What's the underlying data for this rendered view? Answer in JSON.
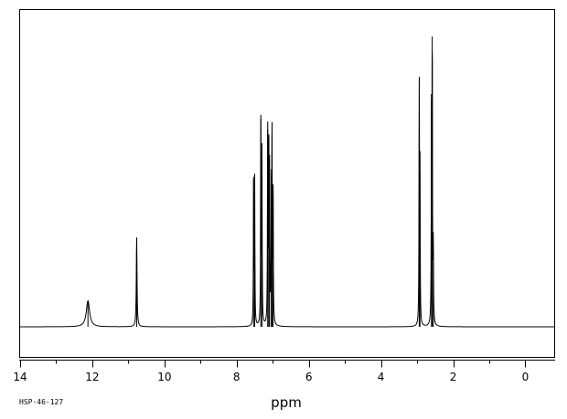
{
  "spectrum_id": "HSP-46-127",
  "chart_data": {
    "type": "line",
    "title": "",
    "xlabel": "ppm",
    "ylabel": "",
    "xlim": [
      14.0,
      -0.8
    ],
    "ylim": [
      0,
      100
    ],
    "x_reversed": true,
    "grid": false,
    "x_ticks": [
      14,
      12,
      10,
      8,
      6,
      4,
      2,
      0
    ],
    "x_tick_labels": [
      "14",
      "12",
      "10",
      "8",
      "6",
      "4",
      "2",
      "0"
    ],
    "x_minor_step": 1,
    "peaks": [
      {
        "shift": 12.12,
        "height": 10.5,
        "width": 0.055
      },
      {
        "shift": 10.77,
        "height": 36.0,
        "width": 0.012
      },
      {
        "shift": 7.53,
        "height": 59.5,
        "width": 0.007
      },
      {
        "shift": 7.5,
        "height": 58.5,
        "width": 0.007
      },
      {
        "shift": 7.33,
        "height": 84.0,
        "width": 0.007
      },
      {
        "shift": 7.3,
        "height": 74.0,
        "width": 0.007
      },
      {
        "shift": 7.14,
        "height": 79.5,
        "width": 0.007
      },
      {
        "shift": 7.11,
        "height": 76.0,
        "width": 0.007
      },
      {
        "shift": 7.09,
        "height": 64.0,
        "width": 0.007
      },
      {
        "shift": 7.04,
        "height": 57.0,
        "width": 0.007
      },
      {
        "shift": 7.02,
        "height": 77.5,
        "width": 0.007
      },
      {
        "shift": 6.99,
        "height": 57.5,
        "width": 0.007
      },
      {
        "shift": 2.94,
        "height": 100.0,
        "width": 0.007
      },
      {
        "shift": 2.92,
        "height": 62.0,
        "width": 0.007
      },
      {
        "shift": 2.6,
        "height": 91.0,
        "width": 0.007
      },
      {
        "shift": 2.58,
        "height": 117.0,
        "width": 0.007
      },
      {
        "shift": 2.55,
        "height": 31.0,
        "width": 0.007
      }
    ]
  }
}
